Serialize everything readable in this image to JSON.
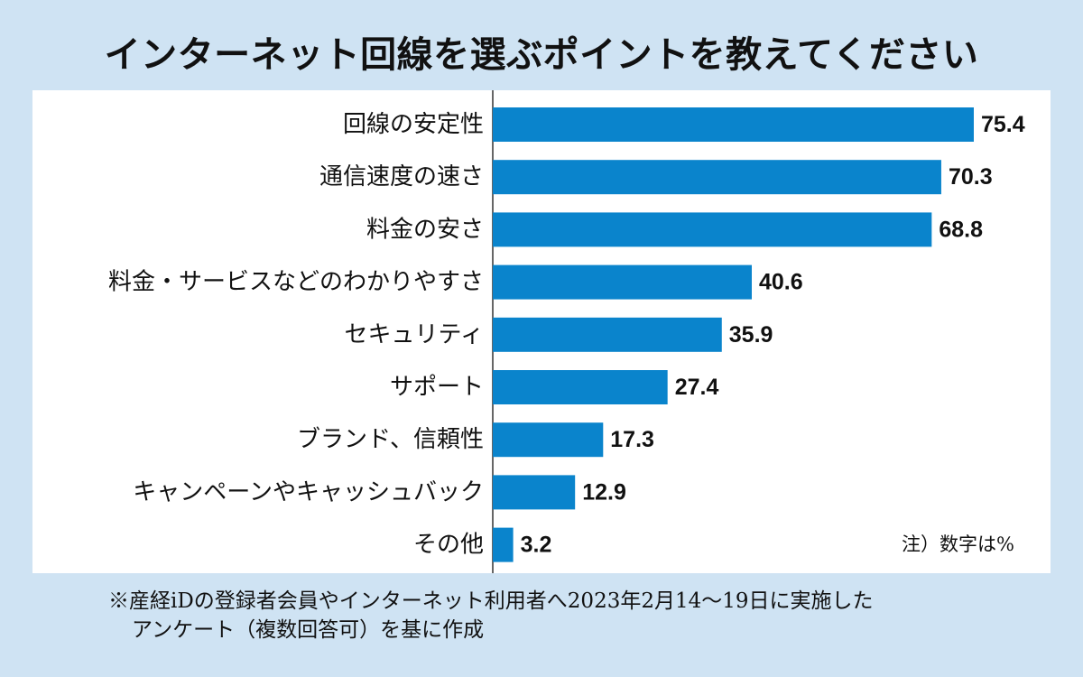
{
  "chart_data": {
    "type": "bar",
    "orientation": "horizontal",
    "title": "インターネット回線を選ぶポイントを教えてください",
    "unit_note": "注）数字は%",
    "categories": [
      "回線の安定性",
      "通信速度の速さ",
      "料金の安さ",
      "料金・サービスなどのわかりやすさ",
      "セキュリティ",
      "サポート",
      "ブランド、信頼性",
      "キャンペーンやキャッシュバック",
      "その他"
    ],
    "values": [
      75.4,
      70.3,
      68.8,
      40.6,
      35.9,
      27.4,
      17.3,
      12.9,
      3.2
    ],
    "value_labels": [
      "75.4",
      "70.3",
      "68.8",
      "40.6",
      "35.9",
      "27.4",
      "17.3",
      "12.9",
      "3.2"
    ],
    "xlim": [
      0,
      75.4
    ],
    "grid": false,
    "bar_color": "#0a84cc",
    "background_color": "#cfe3f3"
  },
  "footnote": {
    "line1": "※産経iDの登録者会員やインターネット利用者へ2023年2月14～19日に実施した",
    "line2": "アンケート（複数回答可）を基に作成"
  }
}
